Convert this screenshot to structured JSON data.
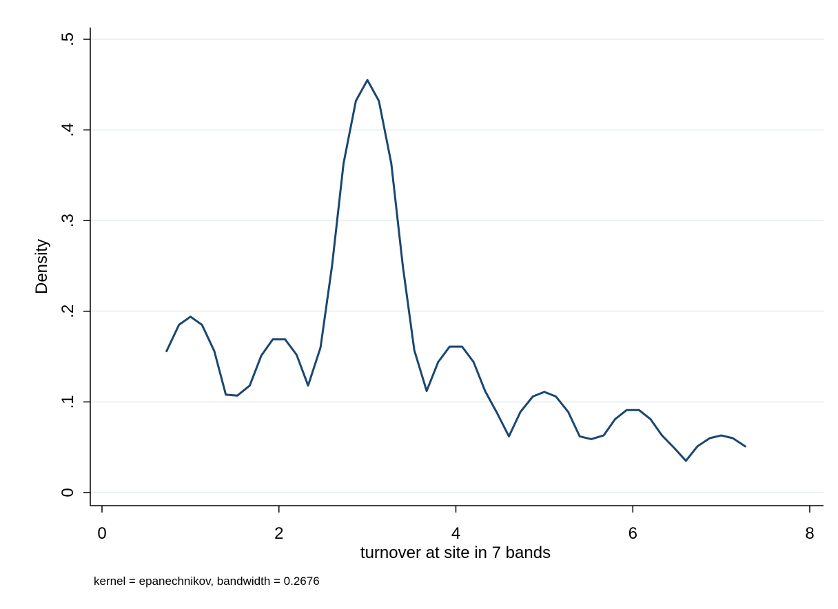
{
  "chart_data": {
    "type": "line",
    "title": "",
    "xlabel": "turnover at site in 7 bands",
    "ylabel": "Density",
    "note": "kernel = epanechnikov, bandwidth = 0.2676",
    "xlim": [
      0,
      8
    ],
    "ylim": [
      0,
      0.5
    ],
    "xticks": [
      {
        "value": 0,
        "label": "0"
      },
      {
        "value": 2,
        "label": "2"
      },
      {
        "value": 4,
        "label": "4"
      },
      {
        "value": 6,
        "label": "6"
      },
      {
        "value": 8,
        "label": "8"
      }
    ],
    "yticks": [
      {
        "value": 0,
        "label": "0"
      },
      {
        "value": 0.1,
        "label": ".1"
      },
      {
        "value": 0.2,
        "label": ".2"
      },
      {
        "value": 0.3,
        "label": ".3"
      },
      {
        "value": 0.4,
        "label": ".4"
      },
      {
        "value": 0.5,
        "label": ".5"
      }
    ],
    "grid": "horizontal",
    "line_color": "#1a476f",
    "grid_color": "#eaf2f3",
    "series": [
      {
        "x": [
          0.73,
          0.87,
          1.0,
          1.13,
          1.27,
          1.4,
          1.53,
          1.67,
          1.8,
          1.93,
          2.07,
          2.2,
          2.33,
          2.47,
          2.6,
          2.73,
          2.87,
          3.0,
          3.13,
          3.27,
          3.4,
          3.53,
          3.67,
          3.8,
          3.93,
          4.07,
          4.2,
          4.33,
          4.47,
          4.6,
          4.73,
          4.87,
          5.0,
          5.13,
          5.27,
          5.4,
          5.53,
          5.67,
          5.8,
          5.93,
          6.07,
          6.2,
          6.33,
          6.47,
          6.6,
          6.73,
          6.87,
          7.0,
          7.13,
          7.27
        ],
        "y": [
          0.156,
          0.185,
          0.194,
          0.185,
          0.156,
          0.108,
          0.107,
          0.118,
          0.151,
          0.169,
          0.169,
          0.152,
          0.118,
          0.16,
          0.25,
          0.363,
          0.432,
          0.455,
          0.432,
          0.363,
          0.25,
          0.157,
          0.112,
          0.144,
          0.161,
          0.161,
          0.144,
          0.112,
          0.087,
          0.062,
          0.089,
          0.106,
          0.111,
          0.106,
          0.089,
          0.062,
          0.059,
          0.063,
          0.081,
          0.091,
          0.091,
          0.081,
          0.063,
          0.049,
          0.035,
          0.051,
          0.06,
          0.063,
          0.06,
          0.051
        ]
      }
    ]
  }
}
